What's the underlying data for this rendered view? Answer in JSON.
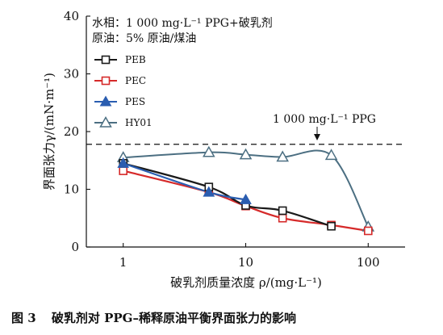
{
  "chart_data": {
    "type": "line",
    "x_scale": "log",
    "xlim": [
      0.5,
      200
    ],
    "ylim": [
      0,
      40
    ],
    "x_ticks": [
      1,
      10,
      100
    ],
    "x_tick_labels": [
      "1",
      "10",
      "100"
    ],
    "y_ticks": [
      0,
      10,
      20,
      30,
      40
    ],
    "y_tick_labels": [
      "0",
      "10",
      "20",
      "30",
      "40"
    ],
    "xlabel": "破乳剂质量浓度 ρ/(mg·L⁻¹)",
    "ylabel": "界面张力γ/(mN·m⁻¹)",
    "annotations": {
      "water_phase": "水相：1 000 mg·L⁻¹ PPG+破乳剂",
      "oil_phase": "原油：5% 原油/煤油",
      "reference_line_label": "1 000 mg·L⁻¹ PPG"
    },
    "reference_line": {
      "y": 17.8
    },
    "legend_position": "upper-left",
    "grid": false,
    "series": [
      {
        "name": "PEB",
        "marker": "square",
        "color": "#1a1a1a",
        "x": [
          1,
          5,
          10,
          20,
          50
        ],
        "y": [
          14.5,
          10.4,
          7.2,
          6.3,
          3.6
        ]
      },
      {
        "name": "PEC",
        "marker": "square",
        "color": "#d62a2a",
        "x": [
          1,
          5,
          10,
          20,
          50,
          100
        ],
        "y": [
          13.2,
          9.5,
          7.1,
          5.0,
          3.8,
          2.8
        ]
      },
      {
        "name": "PES",
        "marker": "triangle-filled",
        "color": "#2a5db0",
        "x": [
          1,
          5,
          10
        ],
        "y": [
          14.5,
          9.5,
          8.2
        ]
      },
      {
        "name": "HY01",
        "marker": "triangle-open",
        "color": "#4c6f82",
        "x": [
          1,
          5,
          10,
          20,
          50,
          100
        ],
        "y": [
          15.5,
          16.4,
          16.0,
          15.6,
          15.9,
          3.5
        ]
      }
    ]
  },
  "caption": {
    "number": "图 3",
    "text": "破乳剂对 PPG–稀释原油平衡界面张力的影响"
  }
}
